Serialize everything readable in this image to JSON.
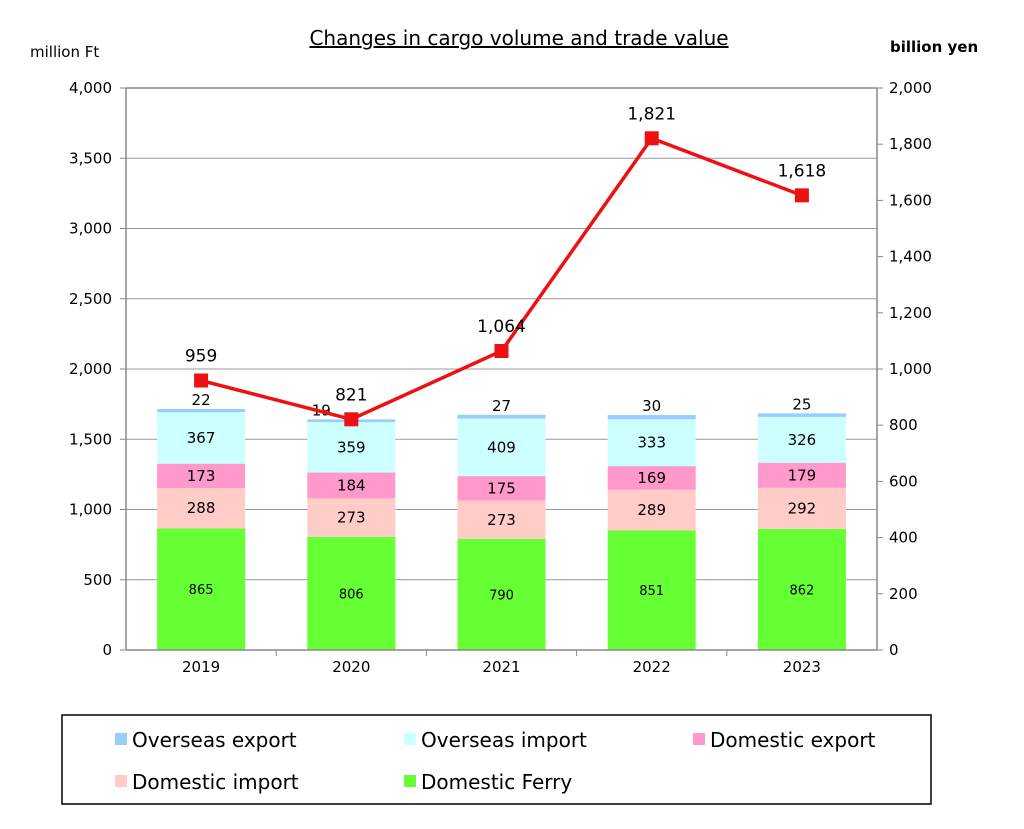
{
  "chart_data": {
    "type": "bar",
    "stacked": true,
    "title": "Changes in cargo volume and trade value",
    "ylabel": "million Ft",
    "y2label": "billion yen",
    "ylim": [
      0,
      4000
    ],
    "y2lim": [
      0,
      2000
    ],
    "yticks": [
      "0",
      "500",
      "1,000",
      "1,500",
      "2,000",
      "2,500",
      "3,000",
      "3,500",
      "4,000"
    ],
    "y2ticks": [
      "0",
      "200",
      "400",
      "600",
      "800",
      "1,000",
      "1,200",
      "1,400",
      "1,600",
      "1,800",
      "2,000"
    ],
    "categories": [
      "2019",
      "2020",
      "2021",
      "2022",
      "2023"
    ],
    "grid": true,
    "legend_position": "bottom",
    "series": [
      {
        "name": "Domestic Ferry",
        "color": "#66ff33",
        "values": [
          865,
          806,
          790,
          851,
          862
        ],
        "labels": [
          "865",
          "806",
          "790",
          "851",
          "862"
        ]
      },
      {
        "name": "Domestic import",
        "color": "#ffccc8",
        "values": [
          288,
          273,
          273,
          289,
          292
        ],
        "labels": [
          "288",
          "273",
          "273",
          "289",
          "292"
        ]
      },
      {
        "name": "Domestic export",
        "color": "#ff99cc",
        "values": [
          173,
          184,
          175,
          169,
          179
        ],
        "labels": [
          "173",
          "184",
          "175",
          "169",
          "179"
        ]
      },
      {
        "name": "Overseas import",
        "color": "#ccffff",
        "values": [
          367,
          359,
          409,
          333,
          326
        ],
        "labels": [
          "367",
          "359",
          "409",
          "333",
          "326"
        ]
      },
      {
        "name": "Overseas export",
        "color": "#99ccff",
        "values": [
          22,
          19,
          27,
          30,
          25
        ],
        "labels": [
          "22",
          "19",
          "27",
          "30",
          "25"
        ]
      }
    ],
    "line_series": {
      "axis": "right",
      "color": "#ee1111",
      "values": [
        959,
        821,
        1064,
        1821,
        1618
      ],
      "labels": [
        "959",
        "821",
        "1,064",
        "1,821",
        "1,618"
      ]
    },
    "legend": [
      {
        "name": "Overseas export",
        "color": "#99ccff"
      },
      {
        "name": "Overseas import",
        "color": "#ccffff"
      },
      {
        "name": "Domestic export",
        "color": "#ff99cc"
      },
      {
        "name": "Domestic import",
        "color": "#ffccc8"
      },
      {
        "name": "Domestic Ferry",
        "color": "#66ff33"
      }
    ]
  }
}
